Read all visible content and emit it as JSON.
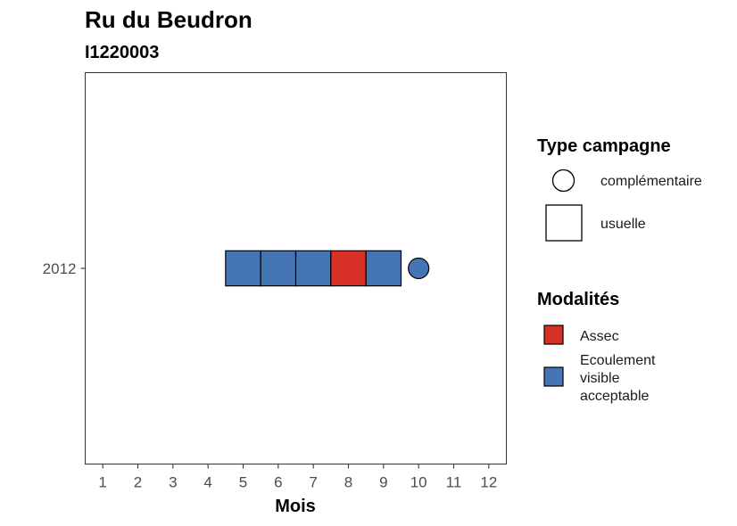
{
  "chart_data": {
    "type": "tile",
    "title": "Ru du Beudron",
    "subtitle": "I1220003",
    "xlabel": "Mois",
    "ylabel": "",
    "x_ticks": [
      1,
      2,
      3,
      4,
      5,
      6,
      7,
      8,
      9,
      10,
      11,
      12
    ],
    "y_categories": [
      "2012"
    ],
    "points": [
      {
        "year": "2012",
        "month": 5,
        "modalite": "Ecoulement visible acceptable",
        "type": "usuelle"
      },
      {
        "year": "2012",
        "month": 6,
        "modalite": "Ecoulement visible acceptable",
        "type": "usuelle"
      },
      {
        "year": "2012",
        "month": 7,
        "modalite": "Ecoulement visible acceptable",
        "type": "usuelle"
      },
      {
        "year": "2012",
        "month": 8,
        "modalite": "Assec",
        "type": "usuelle"
      },
      {
        "year": "2012",
        "month": 9,
        "modalite": "Ecoulement visible acceptable",
        "type": "usuelle"
      },
      {
        "year": "2012",
        "month": 10,
        "modalite": "Ecoulement visible acceptable",
        "type": "complémentaire"
      }
    ],
    "xlim": [
      0.5,
      12.5
    ],
    "grid": false,
    "legend_placement": "right",
    "legends": {
      "type_campagne": {
        "title": "Type campagne",
        "items": [
          {
            "label": "complémentaire",
            "shape": "circle"
          },
          {
            "label": "usuelle",
            "shape": "square"
          }
        ]
      },
      "modalites": {
        "title": "Modalités",
        "items": [
          {
            "label_lines": [
              "Assec"
            ],
            "color": "#d73027"
          },
          {
            "label_lines": [
              "Ecoulement",
              "visible",
              "acceptable"
            ],
            "color": "#4575b4"
          }
        ]
      }
    },
    "colors": {
      "Assec": "#d73027",
      "Ecoulement visible acceptable": "#4575b4"
    }
  }
}
